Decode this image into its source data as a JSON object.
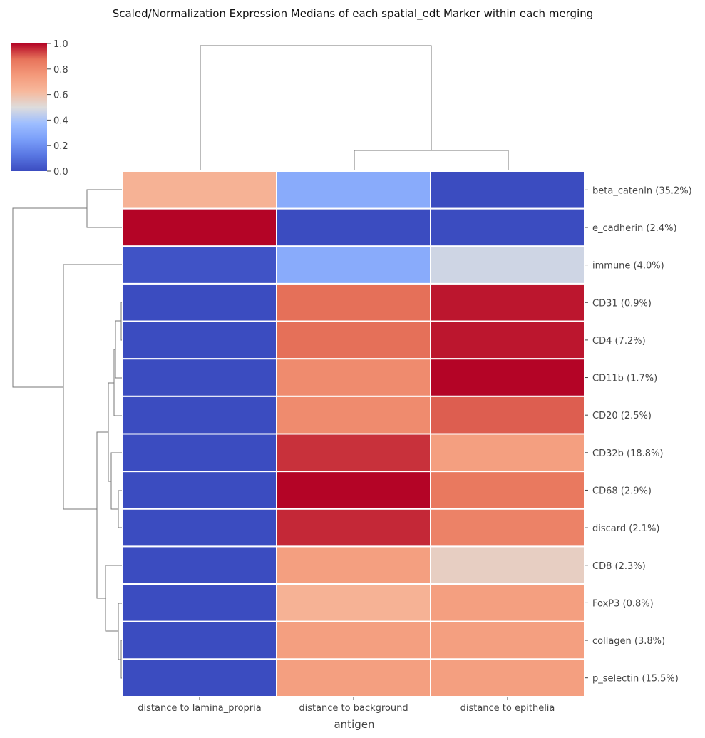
{
  "chart_data": {
    "type": "heatmap",
    "title": "Scaled/Normalization Expression Medians of each spatial_edt Marker within each merging",
    "xlabel": "antigen",
    "ylabel": "",
    "columns": [
      "distance to lamina_propria",
      "distance to background",
      "distance to epithelia"
    ],
    "rows": [
      "beta_catenin (35.2%)",
      "e_cadherin (2.4%)",
      "immune (4.0%)",
      "CD31 (0.9%)",
      "CD4 (7.2%)",
      "CD11b (1.7%)",
      "CD20 (2.5%)",
      "CD32b (18.8%)",
      "CD68 (2.9%)",
      "discard (2.1%)",
      "CD8 (2.3%)",
      "FoxP3 (0.8%)",
      "collagen (3.8%)",
      "p_selectin (15.5%)"
    ],
    "values": [
      [
        0.65,
        0.3,
        0.0
      ],
      [
        1.0,
        0.0,
        0.0
      ],
      [
        0.02,
        0.3,
        0.47
      ],
      [
        0.0,
        0.88,
        0.98
      ],
      [
        0.0,
        0.88,
        0.98
      ],
      [
        0.0,
        0.8,
        1.0
      ],
      [
        0.0,
        0.8,
        0.9
      ],
      [
        0.0,
        0.95,
        0.73
      ],
      [
        0.0,
        1.0,
        0.86
      ],
      [
        0.0,
        0.96,
        0.83
      ],
      [
        0.0,
        0.73,
        0.55
      ],
      [
        0.0,
        0.65,
        0.73
      ],
      [
        0.0,
        0.73,
        0.73
      ],
      [
        0.0,
        0.73,
        0.73
      ]
    ],
    "colormap": "coolwarm",
    "colorbar": {
      "range": [
        0.0,
        1.0
      ],
      "ticks": [
        "0.0",
        "0.2",
        "0.4",
        "0.6",
        "0.8",
        "1.0"
      ]
    },
    "cell_border_color": "#ffffff",
    "dendrogram_color": "#777777",
    "row_dendrogram": true,
    "column_dendrogram": true
  }
}
